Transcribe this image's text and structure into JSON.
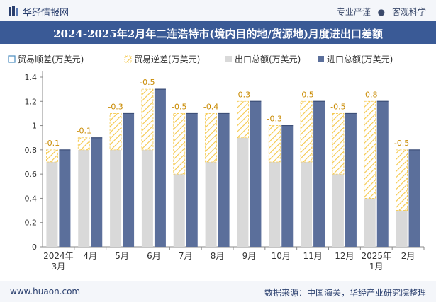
{
  "header": {
    "brand": "华经情报网",
    "tag_left": "专业严谨",
    "tag_right": "客观科学",
    "dot": "●"
  },
  "title": "2024-2025年2月年二连浩特市(境内目的地/货源地)月度进出口差额",
  "footer": {
    "site": "www.huaon.com",
    "source": "数据来源：中国海关，华经产业研究院整理"
  },
  "colors": {
    "title_bg": "#3a5a96",
    "export": "#d9d9d9",
    "import": "#5b6f9b",
    "deficit_hatch": "#f5c84a",
    "surplus": "#4a8bbf"
  },
  "chart_data": {
    "type": "bar",
    "categories": [
      "2024年\n3月",
      "4月",
      "5月",
      "6月",
      "7月",
      "8月",
      "9月",
      "10月",
      "11月",
      "12月",
      "2025年\n1月",
      "2月"
    ],
    "series": [
      {
        "name": "贸易顺差(万美元)",
        "values": [
          0,
          0,
          0,
          0,
          0,
          0,
          0,
          0,
          0,
          0,
          0,
          0
        ]
      },
      {
        "name": "贸易逆差(万美元)",
        "values": [
          -0.1,
          -0.1,
          -0.3,
          -0.5,
          -0.5,
          -0.4,
          -0.3,
          -0.3,
          -0.5,
          -0.5,
          -0.8,
          -0.5
        ]
      },
      {
        "name": "出口总额(万美元)",
        "values": [
          0.7,
          0.8,
          0.8,
          0.8,
          0.6,
          0.7,
          0.9,
          0.7,
          0.7,
          0.6,
          0.4,
          0.3
        ]
      },
      {
        "name": "进口总额(万美元)",
        "values": [
          0.8,
          0.9,
          1.1,
          1.3,
          1.1,
          1.1,
          1.2,
          1.0,
          1.2,
          1.1,
          1.2,
          0.8
        ]
      }
    ],
    "data_labels": [
      "-0.1",
      "-0.1",
      "-0.3",
      "-0.5",
      "-0.5",
      "-0.4",
      "-0.3",
      "-0.3",
      "-0.5",
      "-0.5",
      "-0.8",
      "-0.5"
    ],
    "yticks": [
      "0",
      "0.2",
      "0.4",
      "0.6",
      "0.8",
      "1",
      "1.2",
      "1.4"
    ],
    "ylim": [
      0,
      1.4
    ],
    "legend_position": "top",
    "grid": false
  }
}
